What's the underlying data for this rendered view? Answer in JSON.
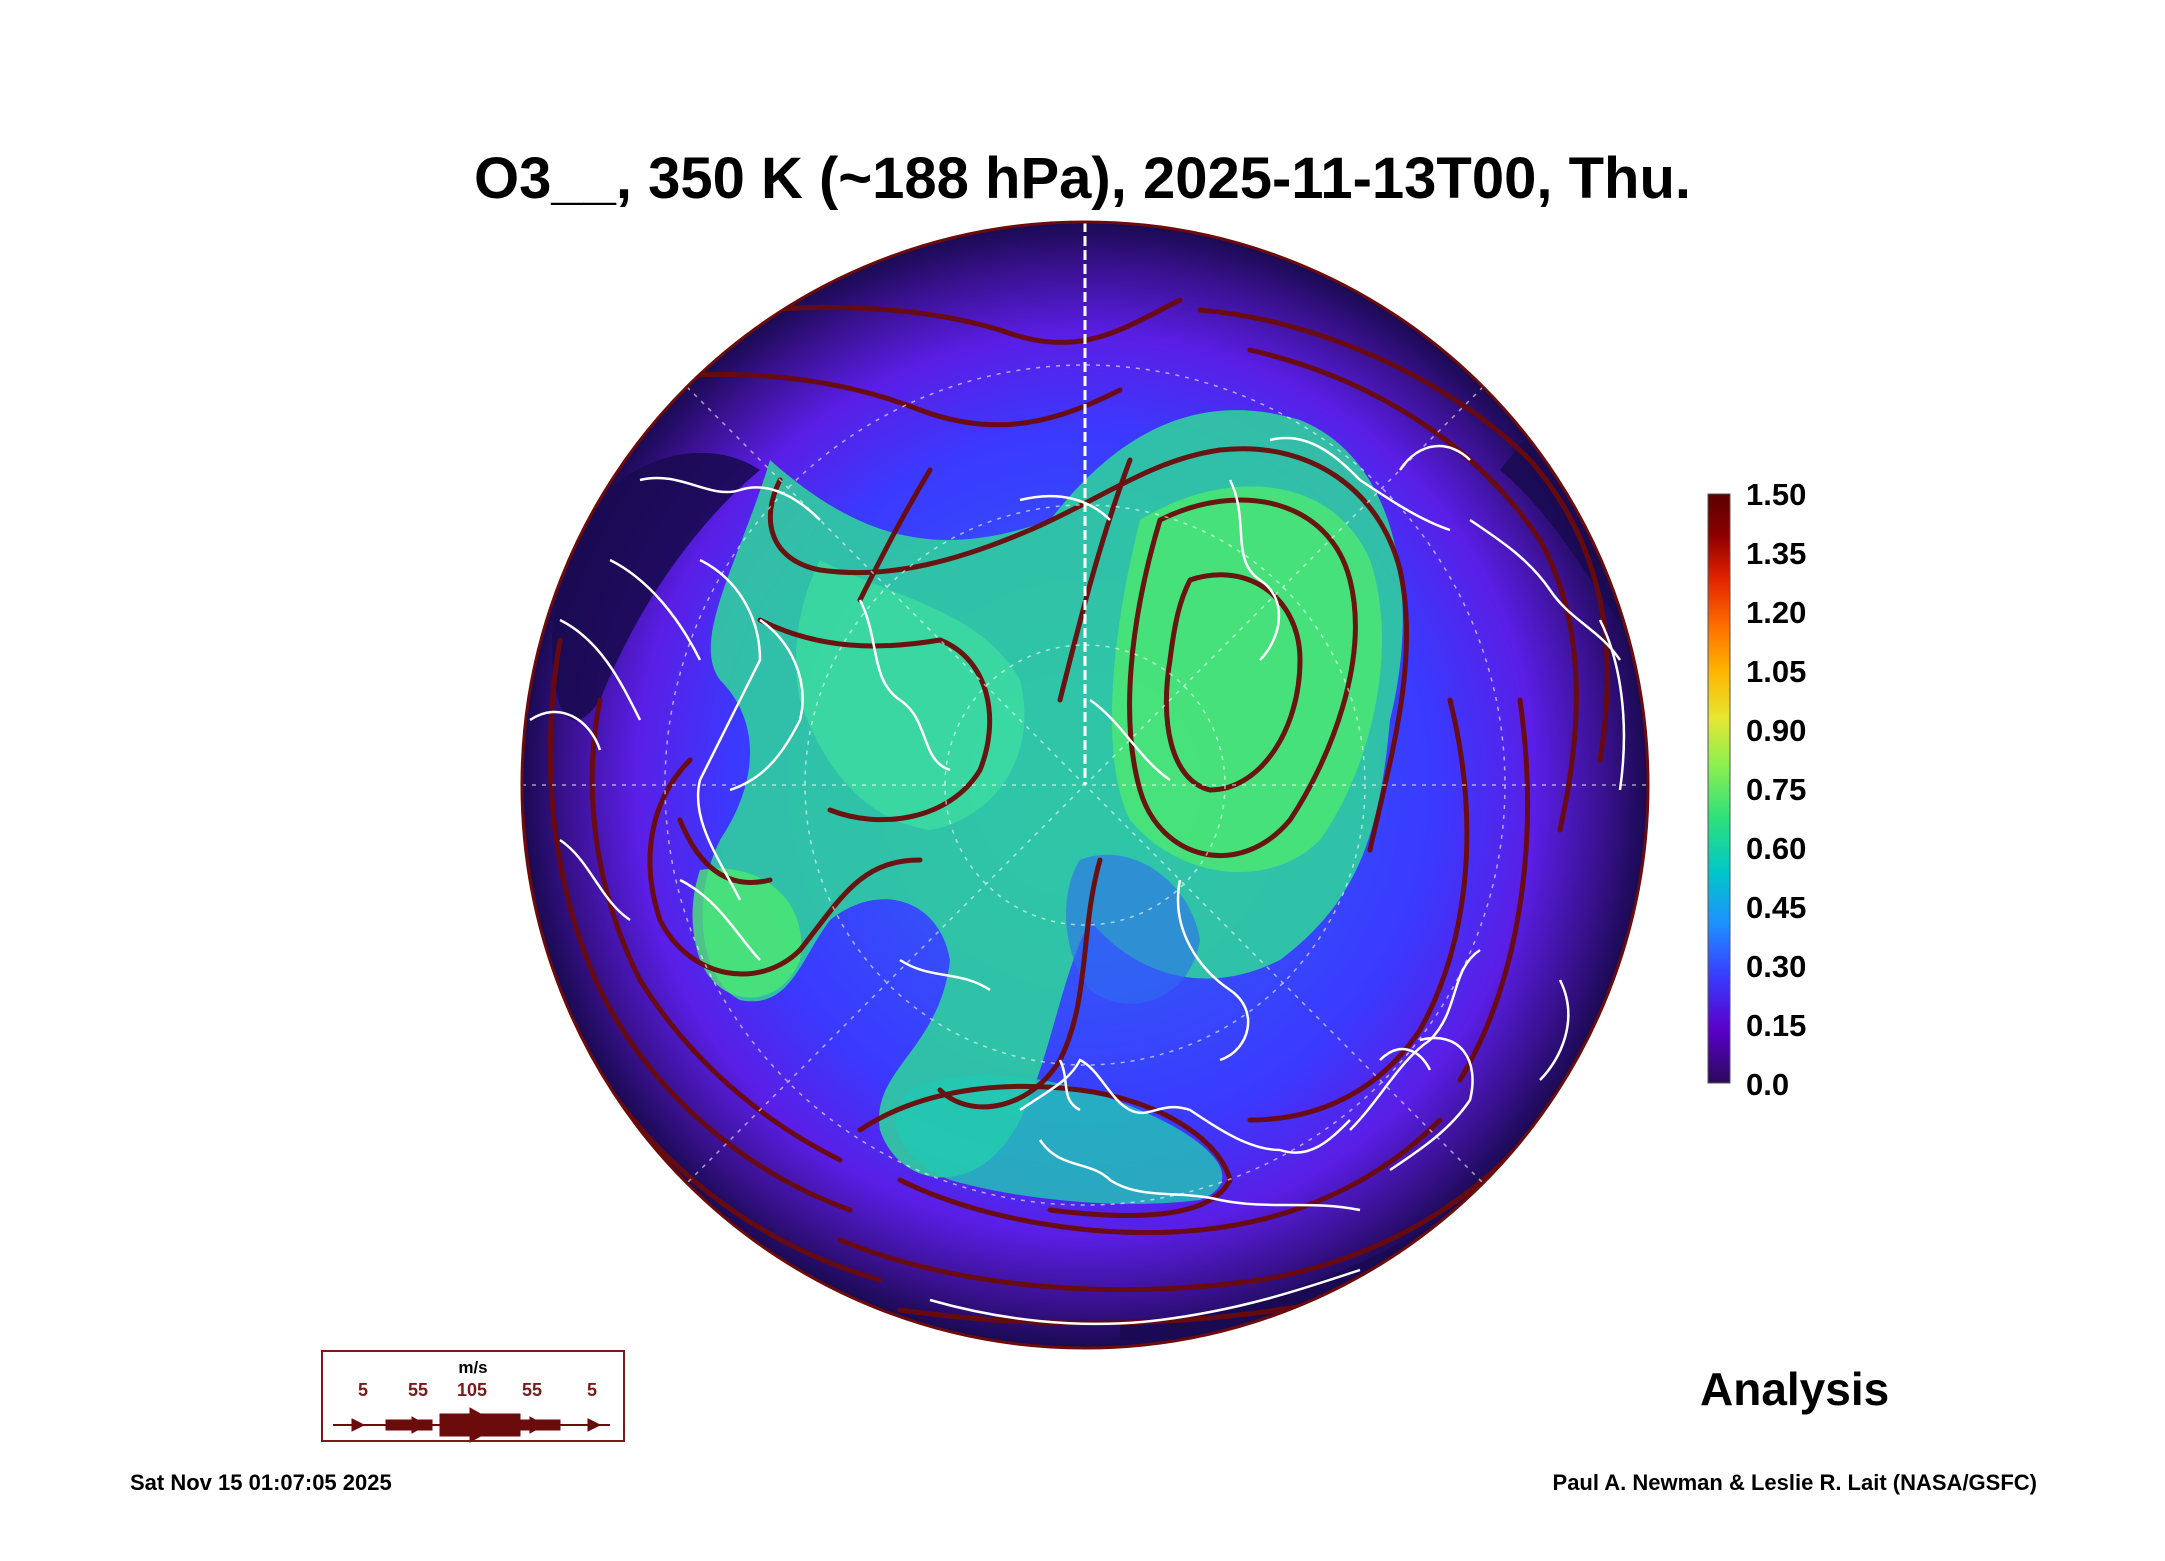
{
  "title": "O3__, 350 K (~188 hPa), 2025-11-13T00, Thu.",
  "colorbar": {
    "ticks": [
      "1.50",
      "1.35",
      "1.20",
      "1.05",
      "0.90",
      "0.75",
      "0.60",
      "0.45",
      "0.30",
      "0.15",
      "0.0"
    ],
    "colors": [
      "#2a0a5e",
      "#5a00c8",
      "#3a3aff",
      "#1e90ff",
      "#00c8c8",
      "#2ee07a",
      "#8cf050",
      "#e6e632",
      "#ffb400",
      "#ff6a00",
      "#e02000",
      "#8c0000",
      "#5a0000"
    ]
  },
  "label_analysis": "Analysis",
  "legend": {
    "unit": "m/s",
    "speeds": [
      "5",
      "55",
      "105",
      "55",
      "5"
    ],
    "color": "#7a1a1a"
  },
  "footer": {
    "timestamp": "Sat Nov 15 01:07:05 2025",
    "credit": "Paul A. Newman & Leslie R. Lait (NASA/GSFC)"
  },
  "map_colors": {
    "low": "#1a0a52",
    "mid_low": "#5a1ee6",
    "mid": "#2f6cf0",
    "mid_high": "#22c8b4",
    "high": "#3ee878",
    "streamline": "#6b0b0b",
    "coast": "#ffffff"
  }
}
